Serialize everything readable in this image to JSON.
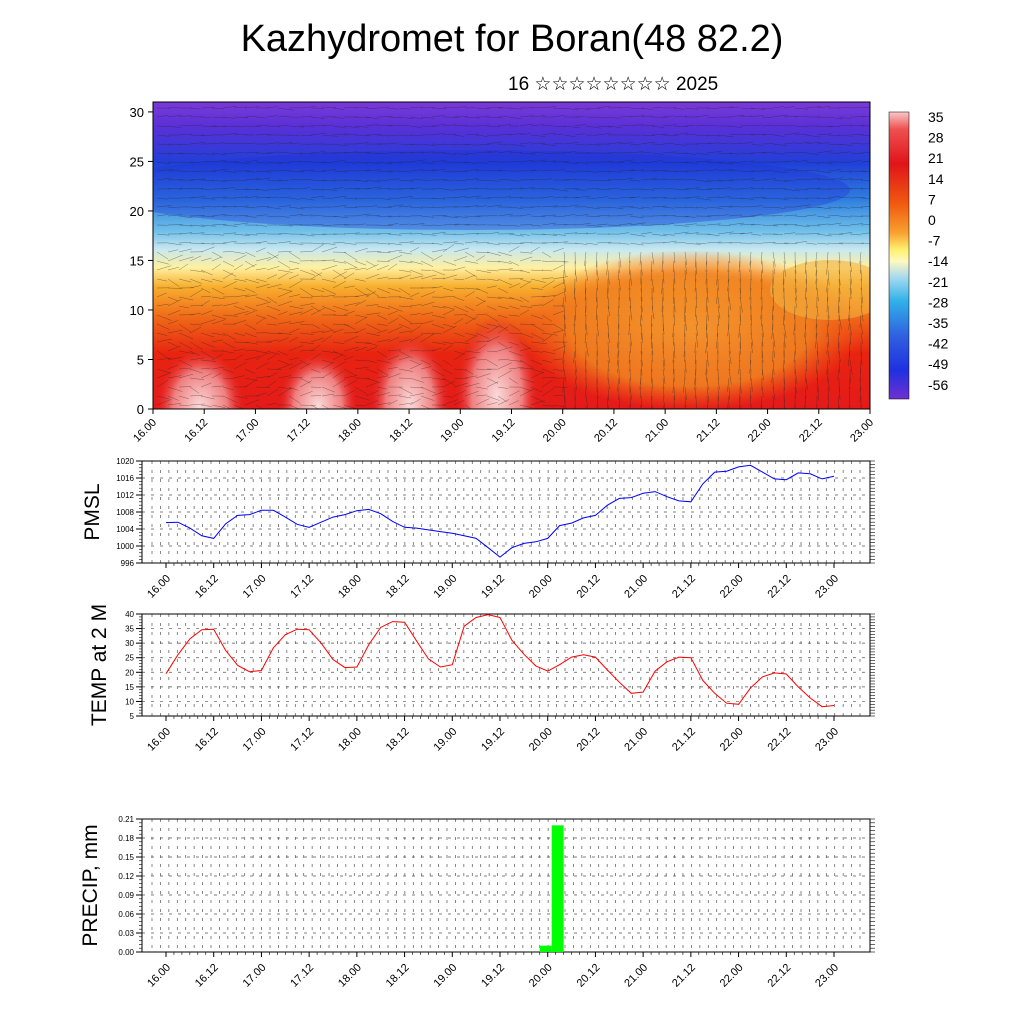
{
  "header": {
    "title": "Kazhydromet for Boran(48 82.2)",
    "subtitle": "16 ☆☆☆☆☆☆☆☆ 2025"
  },
  "chart_data": [
    {
      "type": "heatmap",
      "name": "temperature-cross-section",
      "x_ticks": [
        "16.00",
        "16.12",
        "17.00",
        "17.12",
        "18.00",
        "18.12",
        "19.00",
        "19.12",
        "20.00",
        "20.12",
        "21.00",
        "21.12",
        "22.00",
        "22.12",
        "23.00"
      ],
      "y_ticks": [
        "0",
        "5",
        "10",
        "15",
        "20",
        "25",
        "30"
      ],
      "ylim": [
        0,
        31
      ],
      "colorbar": {
        "labels": [
          "35",
          "28",
          "21",
          "14",
          "7",
          "0",
          "-7",
          "-14",
          "-21",
          "-28",
          "-35",
          "-42",
          "-49",
          "-56"
        ],
        "range": [
          -60,
          37
        ]
      },
      "colors": {
        "hot": "#f8c8c8",
        "red": "#e0141a",
        "orange": "#f08a1a",
        "yellow": "#fff8a0",
        "lightblue": "#a0d8f0",
        "blue": "#2060e0",
        "purple": "#7030d0"
      }
    },
    {
      "type": "line",
      "name": "pmsl",
      "ylabel": "PMSL",
      "y_ticks": [
        "996",
        "1000",
        "1004",
        "1008",
        "1012",
        "1016",
        "1020"
      ],
      "ylim": [
        996,
        1020
      ],
      "x_ticks": [
        "16.00",
        "16.12",
        "17.00",
        "17.12",
        "18.00",
        "18.12",
        "19.00",
        "19.12",
        "20.00",
        "20.12",
        "21.00",
        "21.12",
        "22.00",
        "22.12",
        "23.00"
      ],
      "line_color": "#0000ff",
      "values": [
        1005.5,
        1005.6,
        1004.2,
        1002.4,
        1001.8,
        1005.2,
        1007.2,
        1007.4,
        1008.4,
        1008.4,
        1006.8,
        1005.1,
        1004.4,
        1005.6,
        1006.8,
        1007.4,
        1008.3,
        1008.6,
        1007.6,
        1005.8,
        1004.4,
        1004.2,
        1003.8,
        1003.4,
        1003.0,
        1002.4,
        1001.8,
        999.6,
        997.4,
        999.6,
        1000.6,
        1001.0,
        1001.8,
        1004.8,
        1005.4,
        1006.6,
        1007.2,
        1009.6,
        1011.2,
        1011.4,
        1012.4,
        1012.8,
        1011.6,
        1010.6,
        1010.4,
        1014.6,
        1017.4,
        1017.6,
        1018.6,
        1019.0,
        1017.4,
        1015.8,
        1015.6,
        1017.2,
        1017.0,
        1015.8,
        1016.4
      ]
    },
    {
      "type": "line",
      "name": "temp2m",
      "ylabel": "TEMP at 2 M",
      "y_ticks": [
        "5",
        "10",
        "15",
        "20",
        "25",
        "30",
        "35",
        "40"
      ],
      "ylim": [
        5,
        40
      ],
      "x_ticks": [
        "16.00",
        "16.12",
        "17.00",
        "17.12",
        "18.00",
        "18.12",
        "19.00",
        "19.12",
        "20.00",
        "20.12",
        "21.00",
        "21.12",
        "22.00",
        "22.12",
        "23.00"
      ],
      "line_color": "#ff0000",
      "values": [
        19.5,
        26.0,
        31.5,
        34.6,
        34.8,
        27.5,
        22.4,
        20.2,
        20.6,
        28.4,
        32.9,
        34.8,
        34.6,
        30.0,
        24.4,
        21.6,
        21.8,
        29.5,
        35.4,
        37.4,
        37.2,
        30.8,
        24.6,
        21.8,
        22.6,
        35.8,
        38.8,
        39.8,
        38.8,
        31.0,
        26.2,
        22.2,
        20.4,
        22.6,
        25.2,
        26.0,
        25.2,
        20.8,
        16.6,
        12.8,
        13.2,
        20.4,
        23.6,
        25.2,
        25.0,
        17.2,
        12.8,
        9.4,
        9.0,
        14.6,
        18.4,
        19.8,
        19.4,
        15.0,
        11.2,
        8.2,
        8.6
      ]
    },
    {
      "type": "bar",
      "name": "precip",
      "ylabel": "PRECIP, mm",
      "y_ticks": [
        "0.00",
        "0.03",
        "0.06",
        "0.09",
        "0.12",
        "0.15",
        "0.18",
        "0.21"
      ],
      "ylim": [
        0,
        0.21
      ],
      "x_ticks": [
        "16.00",
        "16.12",
        "17.00",
        "17.12",
        "18.00",
        "18.12",
        "19.00",
        "19.12",
        "20.00",
        "20.12",
        "21.00",
        "21.12",
        "22.00",
        "22.12",
        "23.00"
      ],
      "bar_color": "#00ff00",
      "bars": [
        {
          "x": 32,
          "value": 0.01
        },
        {
          "x": 33,
          "value": 0.2
        }
      ]
    }
  ]
}
